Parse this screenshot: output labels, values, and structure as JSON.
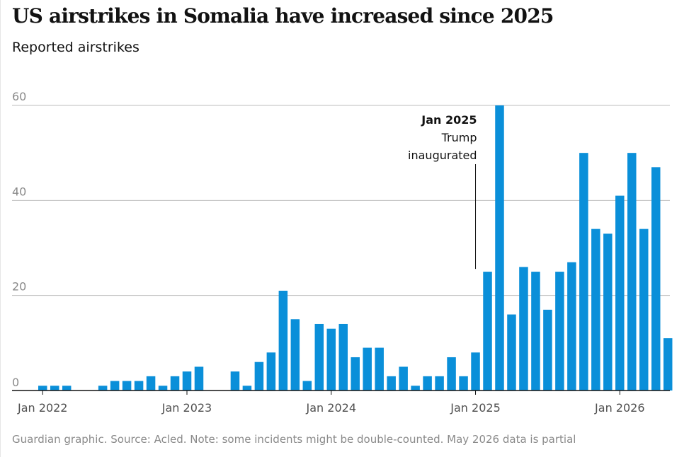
{
  "title": "US airstrikes in Somalia have increased since 2025",
  "subtitle": "Reported airstrikes",
  "footer": "Guardian graphic. Source: Acled. Note: some incidents might be double-counted. May 2026 data is partial",
  "colors": {
    "bar": "#0a8fd9",
    "grid": "#bdbdbd",
    "axis": "#121212",
    "annotation_line": "#121212"
  },
  "chart_data": {
    "type": "bar",
    "title": "US airstrikes in Somalia have increased since 2025",
    "ylabel": "Reported airstrikes",
    "ylim": [
      0,
      60
    ],
    "yticks": [
      0,
      20,
      40,
      60
    ],
    "grid": true,
    "x_tick_labels": [
      {
        "label": "Jan 2022",
        "month": "2022-01"
      },
      {
        "label": "Jan 2023",
        "month": "2023-01"
      },
      {
        "label": "Jan 2024",
        "month": "2024-01"
      },
      {
        "label": "Jan 2025",
        "month": "2025-01"
      },
      {
        "label": "Jan 2026",
        "month": "2026-01"
      }
    ],
    "categories": [
      "2022-01",
      "2022-02",
      "2022-03",
      "2022-04",
      "2022-05",
      "2022-06",
      "2022-07",
      "2022-08",
      "2022-09",
      "2022-10",
      "2022-11",
      "2022-12",
      "2023-01",
      "2023-02",
      "2023-03",
      "2023-04",
      "2023-05",
      "2023-06",
      "2023-07",
      "2023-08",
      "2023-09",
      "2023-10",
      "2023-11",
      "2023-12",
      "2024-01",
      "2024-02",
      "2024-03",
      "2024-04",
      "2024-05",
      "2024-06",
      "2024-07",
      "2024-08",
      "2024-09",
      "2024-10",
      "2024-11",
      "2024-12",
      "2025-01",
      "2025-02",
      "2025-03",
      "2025-04",
      "2025-05",
      "2025-06",
      "2025-07",
      "2025-08",
      "2025-09",
      "2025-10",
      "2025-11",
      "2025-12",
      "2026-01",
      "2026-02",
      "2026-03",
      "2026-04",
      "2026-05"
    ],
    "values": [
      1,
      1,
      1,
      0,
      0,
      1,
      2,
      2,
      2,
      3,
      1,
      3,
      4,
      5,
      0,
      0,
      4,
      1,
      6,
      8,
      21,
      15,
      2,
      14,
      13,
      14,
      7,
      9,
      9,
      3,
      5,
      1,
      3,
      3,
      7,
      3,
      8,
      25,
      60,
      16,
      26,
      25,
      17,
      25,
      27,
      50,
      34,
      33,
      41,
      50,
      34,
      47,
      11
    ],
    "annotation": {
      "month": "2025-01",
      "value": 25,
      "label_bold": "Jan 2025",
      "label_lines": [
        "Trump",
        "inaugurated"
      ]
    }
  }
}
